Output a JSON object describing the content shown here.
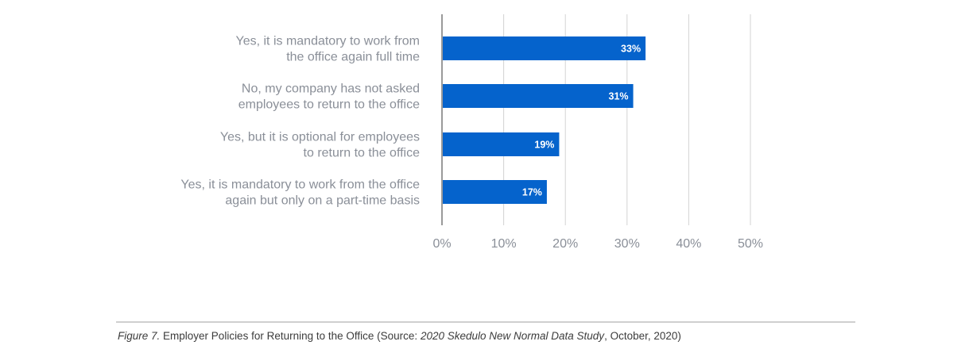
{
  "chart_data": {
    "type": "bar",
    "orientation": "horizontal",
    "categories": [
      [
        "Yes, it is mandatory to work from",
        "the office again full time"
      ],
      [
        "No, my company has not asked",
        "employees to return to the office"
      ],
      [
        "Yes, but it is optional for employees",
        "to return to the office"
      ],
      [
        "Yes, it is mandatory to work from the office",
        "again but only on a part-time basis"
      ]
    ],
    "values": [
      33,
      31,
      19,
      17
    ],
    "value_labels": [
      "33%",
      "31%",
      "19%",
      "17%"
    ],
    "xlim": [
      0,
      50
    ],
    "ticks": [
      0,
      10,
      20,
      30,
      40,
      50
    ],
    "tick_labels": [
      "0%",
      "10%",
      "20%",
      "30%",
      "40%",
      "50%"
    ],
    "grid": true,
    "bar_color": "#0563cc",
    "grid_color": "#d3d3d3",
    "axis_color": "#9a9a9a"
  },
  "caption": {
    "prefix_italic": "Figure 7.",
    "text1": " Employer Policies for Returning to the Office (Source: ",
    "source_italic": "2020 Skedulo New Normal Data Study",
    "text2": ", October, 2020)"
  }
}
